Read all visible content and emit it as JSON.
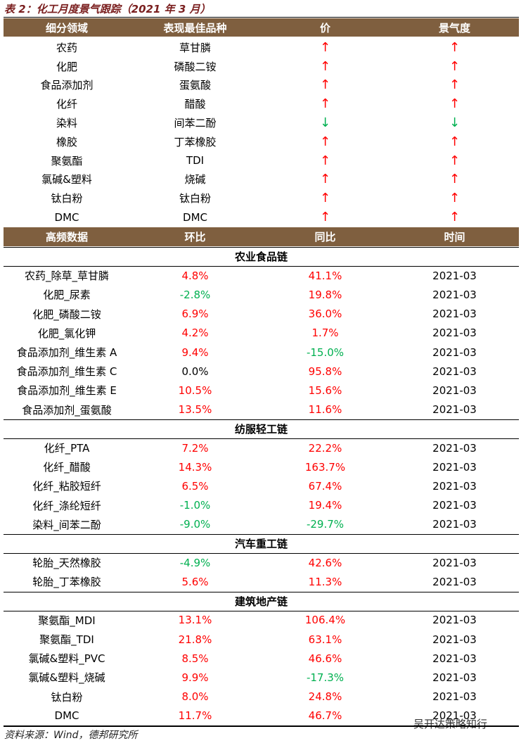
{
  "title": "表 2：化工月度景气跟踪（2021 年 3 月）",
  "colors": {
    "up": "#ff0000",
    "down": "#00b050",
    "neutral": "#000000",
    "header": "#7f5f3f"
  },
  "table1": {
    "header": [
      "细分领域",
      "表现最佳品种",
      "价",
      "景气度"
    ],
    "rows": [
      [
        "农药",
        "草甘膦",
        "↑",
        "↑"
      ],
      [
        "化肥",
        "磷酸二铵",
        "↑",
        "↑"
      ],
      [
        "食品添加剂",
        "蛋氨酸",
        "↑",
        "↑"
      ],
      [
        "化纤",
        "醋酸",
        "↑",
        "↑"
      ],
      [
        "染料",
        "间苯二酚",
        "↓",
        "↓"
      ],
      [
        "橡胶",
        "丁苯橡胶",
        "↑",
        "↑"
      ],
      [
        "聚氨酯",
        "TDI",
        "↑",
        "↑"
      ],
      [
        "氯碱&塑料",
        "烧碱",
        "↑",
        "↑"
      ],
      [
        "钛白粉",
        "钛白粉",
        "↑",
        "↑"
      ],
      [
        "DMC",
        "DMC",
        "↑",
        "↑"
      ]
    ]
  },
  "table2": {
    "header": [
      "高频数据",
      "环比",
      "同比",
      "时间"
    ],
    "sections": [
      {
        "name": "农业食品链",
        "rows": [
          [
            "农药_除草_草甘膦",
            "4.8%",
            "41.1%",
            "2021-03"
          ],
          [
            "化肥_尿素",
            "-2.8%",
            "19.8%",
            "2021-03"
          ],
          [
            "化肥_磷酸二铵",
            "6.9%",
            "36.0%",
            "2021-03"
          ],
          [
            "化肥_氯化钾",
            "4.2%",
            "1.7%",
            "2021-03"
          ],
          [
            "食品添加剂_维生素 A",
            "9.4%",
            "-15.0%",
            "2021-03"
          ],
          [
            "食品添加剂_维生素 C",
            "0.0%",
            "95.8%",
            "2021-03"
          ],
          [
            "食品添加剂_维生素 E",
            "10.5%",
            "15.6%",
            "2021-03"
          ],
          [
            "食品添加剂_蛋氨酸",
            "13.5%",
            "11.6%",
            "2021-03"
          ]
        ]
      },
      {
        "name": "纺服轻工链",
        "rows": [
          [
            "化纤_PTA",
            "7.2%",
            "22.2%",
            "2021-03"
          ],
          [
            "化纤_醋酸",
            "14.3%",
            "163.7%",
            "2021-03"
          ],
          [
            "化纤_粘胶短纤",
            "6.5%",
            "67.4%",
            "2021-03"
          ],
          [
            "化纤_涤纶短纤",
            "-1.0%",
            "19.4%",
            "2021-03"
          ],
          [
            "染料_间苯二酚",
            "-9.0%",
            "-29.7%",
            "2021-03"
          ]
        ]
      },
      {
        "name": "汽车重工链",
        "rows": [
          [
            "轮胎_天然橡胶",
            "-4.9%",
            "42.6%",
            "2021-03"
          ],
          [
            "轮胎_丁苯橡胶",
            "5.6%",
            "11.3%",
            "2021-03"
          ]
        ]
      },
      {
        "name": "建筑地产链",
        "rows": [
          [
            "聚氨酯_MDI",
            "13.1%",
            "106.4%",
            "2021-03"
          ],
          [
            "聚氨酯_TDI",
            "21.8%",
            "63.1%",
            "2021-03"
          ],
          [
            "氯碱&塑料_PVC",
            "8.5%",
            "46.6%",
            "2021-03"
          ],
          [
            "氯碱&塑料_烧碱",
            "9.9%",
            "-17.3%",
            "2021-03"
          ],
          [
            "钛白粉",
            "8.0%",
            "24.8%",
            "2021-03"
          ],
          [
            "DMC",
            "11.7%",
            "46.7%",
            "2021-03"
          ]
        ]
      }
    ]
  },
  "source": "资料来源：Wind，德邦研究所",
  "watermark": "吴开达策略知行"
}
